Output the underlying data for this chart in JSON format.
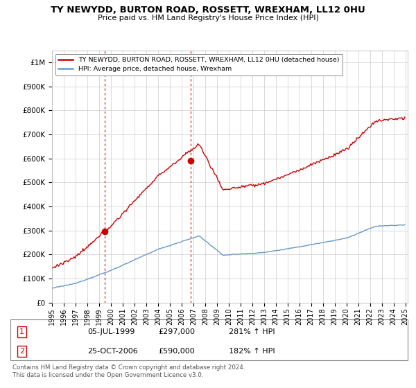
{
  "title": "TY NEWYDD, BURTON ROAD, ROSSETT, WREXHAM, LL12 0HU",
  "subtitle": "Price paid vs. HM Land Registry's House Price Index (HPI)",
  "legend_line1": "TY NEWYDD, BURTON ROAD, ROSSETT, WREXHAM, LL12 0HU (detached house)",
  "legend_line2": "HPI: Average price, detached house, Wrexham",
  "footnote": "Contains HM Land Registry data © Crown copyright and database right 2024.\nThis data is licensed under the Open Government Licence v3.0.",
  "sale1_label": "1",
  "sale1_date": "05-JUL-1999",
  "sale1_price": "£297,000",
  "sale1_hpi": "281% ↑ HPI",
  "sale1_year": 1999.5,
  "sale1_value": 297000,
  "sale2_label": "2",
  "sale2_date": "25-OCT-2006",
  "sale2_price": "£590,000",
  "sale2_hpi": "182% ↑ HPI",
  "sale2_year": 2006.79,
  "sale2_value": 590000,
  "hpi_color": "#6699cc",
  "price_color": "#cc0000",
  "vline_color": "#cc0000",
  "background_color": "#ffffff",
  "grid_color": "#cccccc",
  "ylim": [
    0,
    1050000
  ],
  "xlim_start": 1995,
  "xlim_end": 2025.2,
  "yticks": [
    0,
    100000,
    200000,
    300000,
    400000,
    500000,
    600000,
    700000,
    800000,
    900000,
    1000000
  ],
  "ytick_labels": [
    "£0",
    "£100K",
    "£200K",
    "£300K",
    "£400K",
    "£500K",
    "£600K",
    "£700K",
    "£800K",
    "£900K",
    "£1M"
  ]
}
